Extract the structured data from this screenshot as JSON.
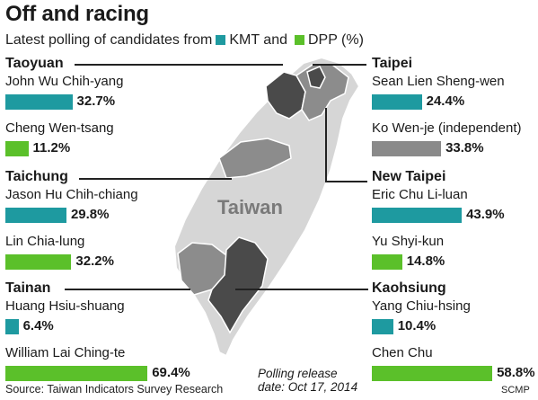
{
  "title": "Off and racing",
  "subtitle": {
    "prefix": "Latest polling of candidates from",
    "kmt": "KMT and",
    "dpp": "DPP (%)"
  },
  "colors": {
    "kmt": "#1e9aa0",
    "dpp": "#5bc02a",
    "independent": "#8a8a8a",
    "dark_region": "#4a4a4a",
    "mid_region": "#8c8c8c",
    "island": "#d6d6d6"
  },
  "map_label": "Taiwan",
  "footer": {
    "source": "Source: Taiwan Indicators Survey Research",
    "note": "Polling release date:  Oct 17, 2014",
    "credit": "SCMP"
  },
  "chart_data": {
    "type": "bar",
    "unit": "%",
    "groups": [
      {
        "region": "Taoyuan",
        "candidates": [
          {
            "name": "John Wu Chih-yang",
            "party": "kmt",
            "value": 32.7,
            "label": "32.7%"
          },
          {
            "name": "Cheng Wen-tsang",
            "party": "dpp",
            "value": 11.2,
            "label": "11.2%"
          }
        ]
      },
      {
        "region": "Taichung",
        "candidates": [
          {
            "name": "Jason Hu Chih-chiang",
            "party": "kmt",
            "value": 29.8,
            "label": "29.8%"
          },
          {
            "name": "Lin Chia-lung",
            "party": "dpp",
            "value": 32.2,
            "label": "32.2%"
          }
        ]
      },
      {
        "region": "Tainan",
        "candidates": [
          {
            "name": "Huang Hsiu-shuang",
            "party": "kmt",
            "value": 6.4,
            "label": "6.4%"
          },
          {
            "name": "William Lai Ching-te",
            "party": "dpp",
            "value": 69.4,
            "label": "69.4%"
          }
        ]
      },
      {
        "region": "Taipei",
        "candidates": [
          {
            "name": "Sean Lien Sheng-wen",
            "party": "kmt",
            "value": 24.4,
            "label": "24.4%"
          },
          {
            "name": "Ko Wen-je (independent)",
            "party": "independent",
            "value": 33.8,
            "label": "33.8%"
          }
        ]
      },
      {
        "region": "New Taipei",
        "candidates": [
          {
            "name": "Eric Chu Li-luan",
            "party": "kmt",
            "value": 43.9,
            "label": "43.9%"
          },
          {
            "name": "Yu Shyi-kun",
            "party": "dpp",
            "value": 14.8,
            "label": "14.8%"
          }
        ]
      },
      {
        "region": "Kaohsiung",
        "candidates": [
          {
            "name": "Yang Chiu-hsing",
            "party": "kmt",
            "value": 10.4,
            "label": "10.4%"
          },
          {
            "name": "Chen Chu",
            "party": "dpp",
            "value": 58.8,
            "label": "58.8%"
          }
        ]
      }
    ]
  }
}
